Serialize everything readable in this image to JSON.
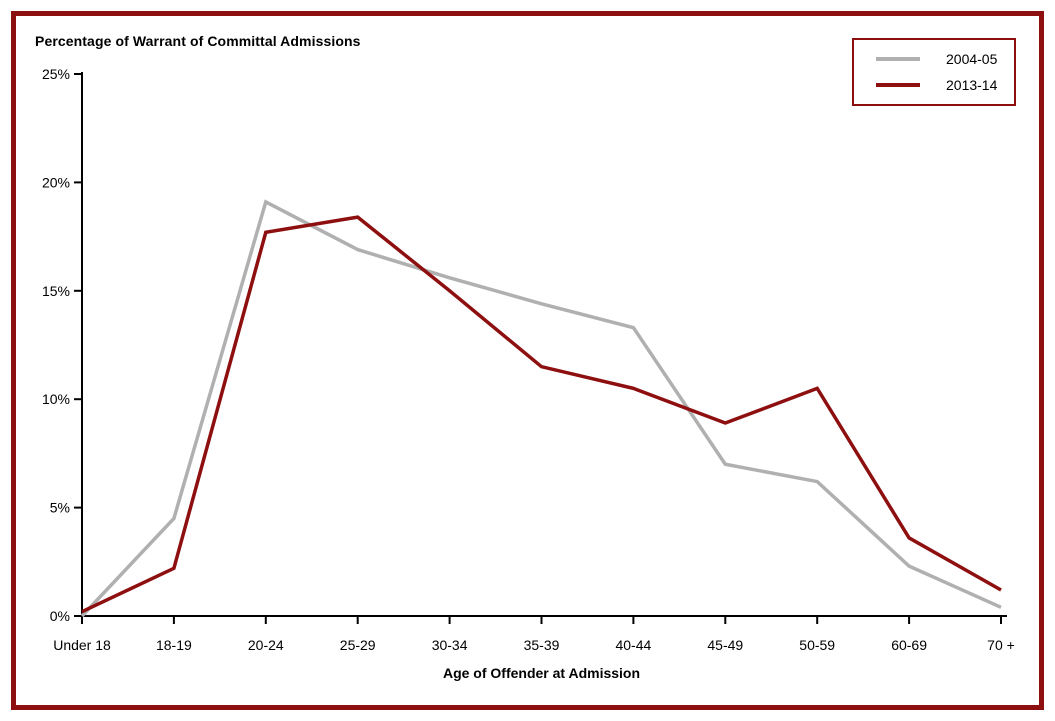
{
  "chart_data": {
    "type": "line",
    "title": "Percentage of Warrant of Committal Admissions",
    "xlabel": "Age of Offender at Admission",
    "ylabel": "",
    "categories": [
      "Under 18",
      "18-19",
      "20-24",
      "25-29",
      "30-34",
      "35-39",
      "40-44",
      "45-49",
      "50-59",
      "60-69",
      "70 +"
    ],
    "y_ticks": [
      "0%",
      "5%",
      "10%",
      "15%",
      "20%",
      "25%"
    ],
    "ylim": [
      0,
      25
    ],
    "grid": false,
    "legend_position": "top-right",
    "series": [
      {
        "name": "2004-05",
        "color": "#b1b0b0",
        "values": [
          0.0,
          4.5,
          19.1,
          16.9,
          15.6,
          14.4,
          13.3,
          7.0,
          6.2,
          2.3,
          0.4
        ]
      },
      {
        "name": "2013-14",
        "color": "#8e0f0f",
        "values": [
          0.2,
          2.2,
          17.7,
          18.4,
          15.0,
          11.5,
          10.5,
          8.9,
          10.5,
          3.6,
          1.2
        ]
      }
    ],
    "colors": {
      "axis": "#000000",
      "frame_border": "#8e0f0f",
      "background": "#ffffff"
    }
  }
}
